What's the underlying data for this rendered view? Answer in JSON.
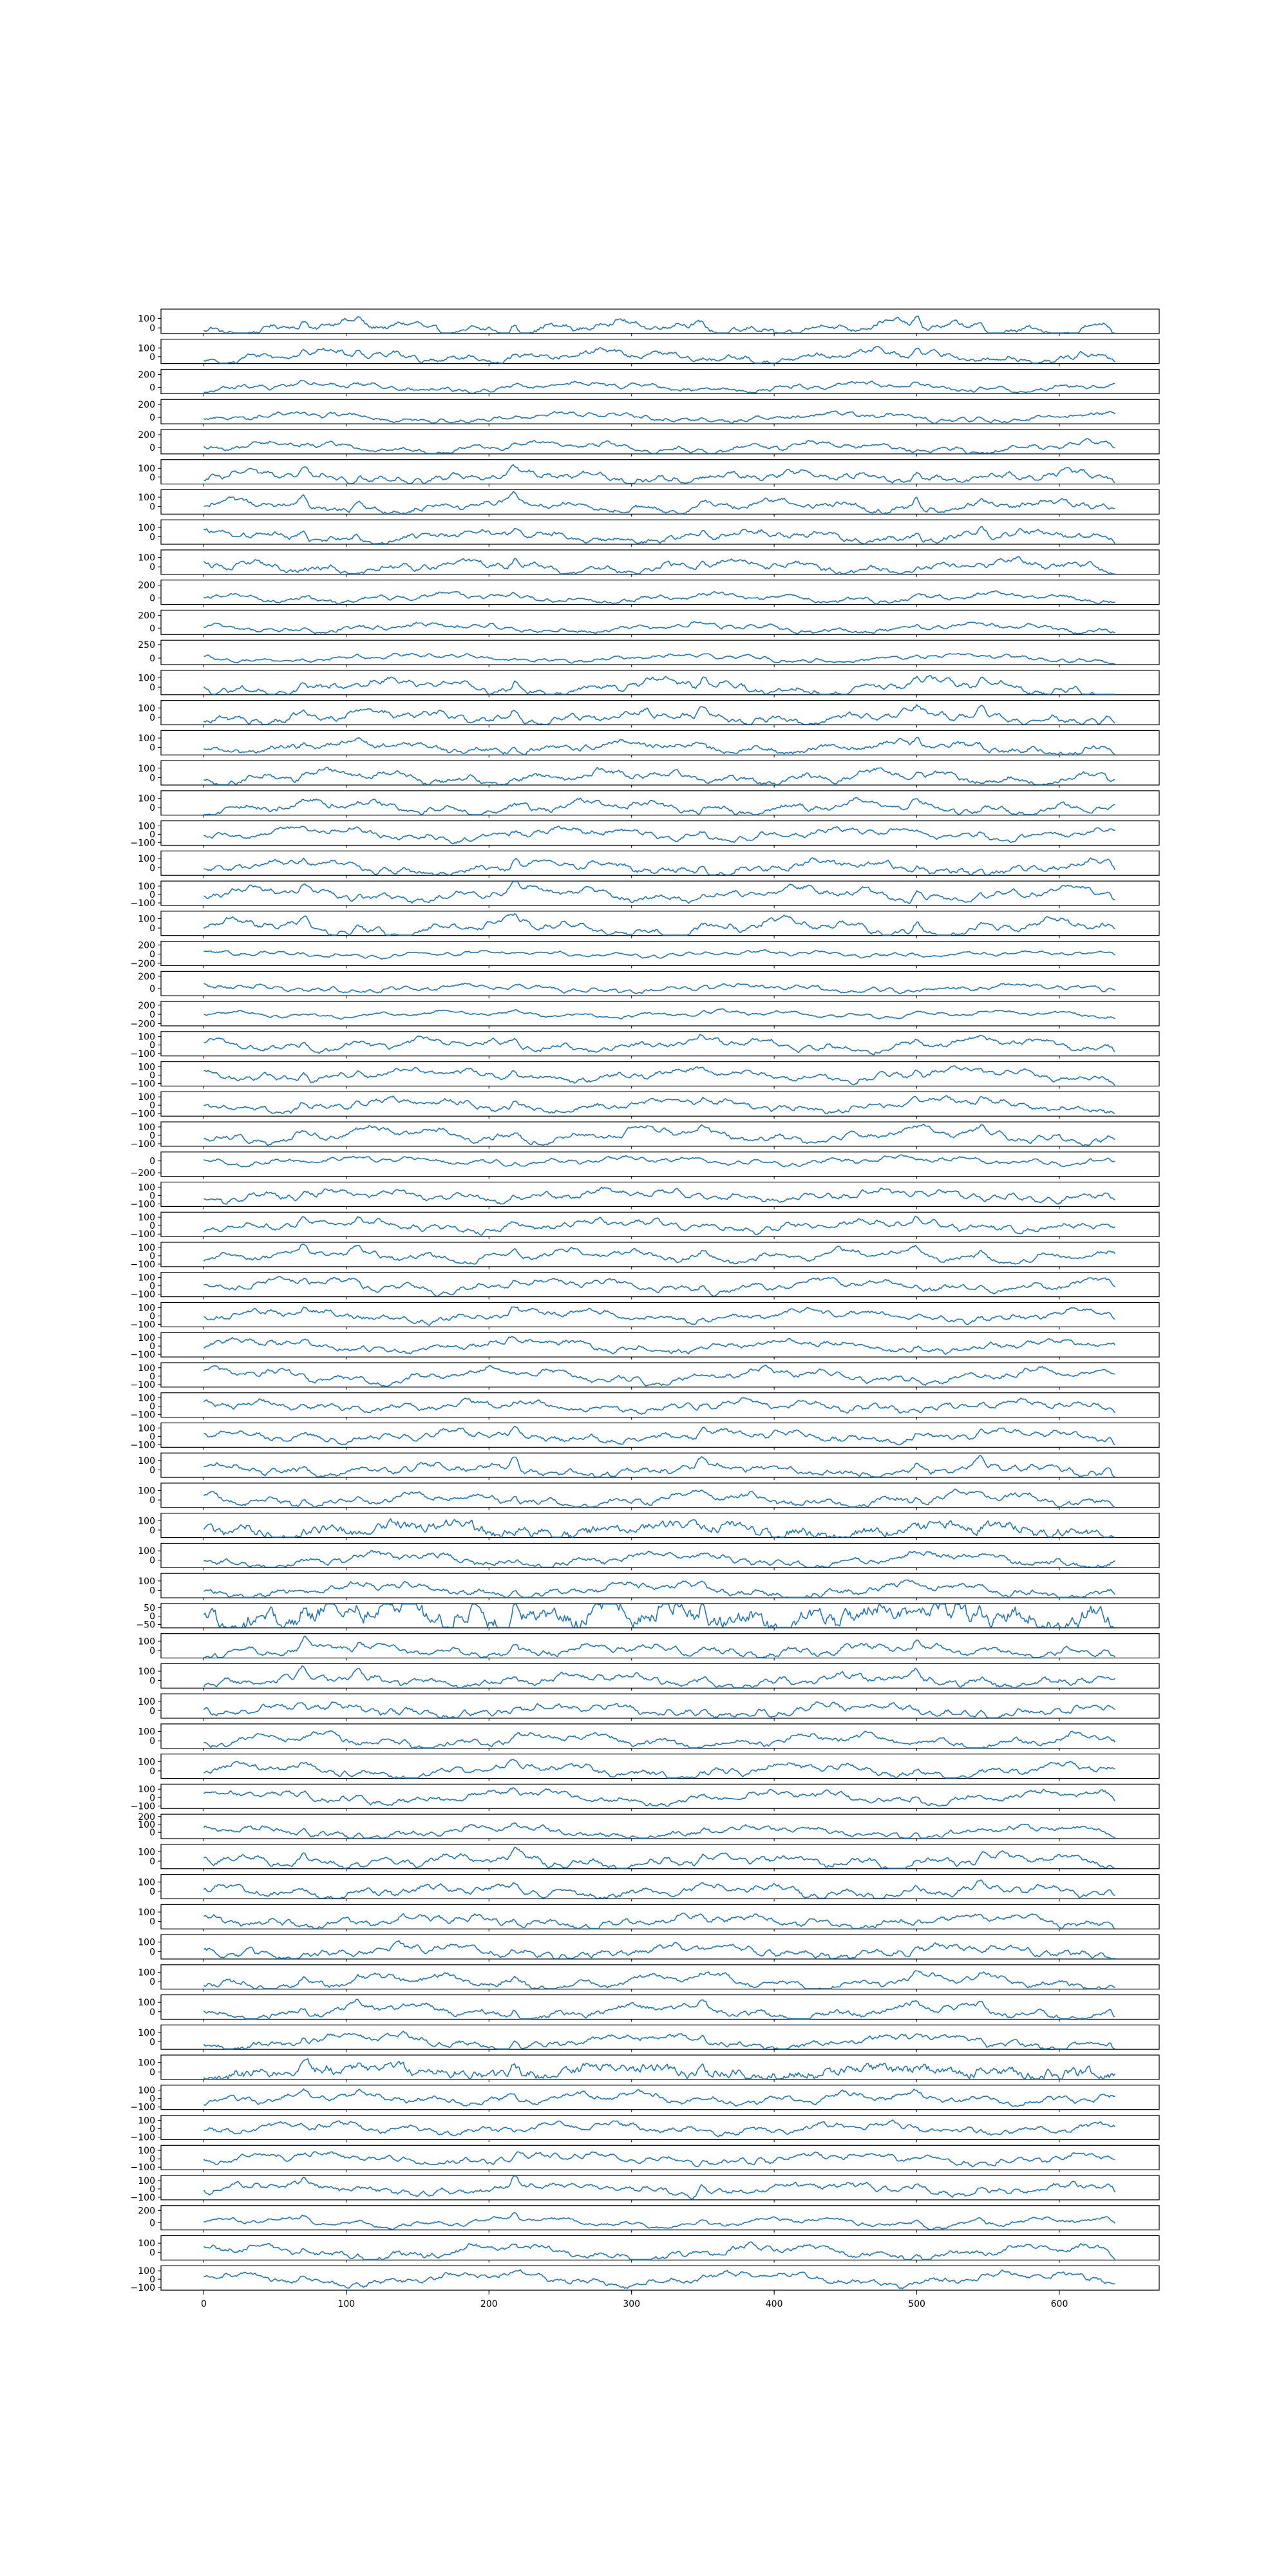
{
  "chart_data": {
    "type": "line",
    "layout": "stacked-subplots",
    "shared_x": true,
    "grid": false,
    "legend": "none",
    "title": "",
    "xlabel": "",
    "ylabel": "",
    "n_points": 640,
    "xlim": [
      -30,
      670
    ],
    "xticks": [
      0,
      100,
      200,
      300,
      400,
      500,
      600
    ],
    "xtick_labels": [
      "0",
      "100",
      "200",
      "300",
      "400",
      "500",
      "600"
    ],
    "line_color": "#1f77b4",
    "common_events": [
      {
        "x": 70,
        "amp": 90
      },
      {
        "x": 108,
        "amp": 55
      },
      {
        "x": 218,
        "amp": 95
      },
      {
        "x": 350,
        "amp": 70
      },
      {
        "x": 500,
        "amp": 80
      },
      {
        "x": 545,
        "amp": 60
      },
      {
        "x": 640,
        "amp": -80
      }
    ],
    "subplots": [
      {
        "yticks": [
          100,
          0
        ],
        "ylim": [
          -60,
          200
        ]
      },
      {
        "yticks": [
          100,
          0
        ],
        "ylim": [
          -80,
          200
        ]
      },
      {
        "yticks": [
          200,
          0
        ],
        "ylim": [
          -100,
          280
        ]
      },
      {
        "yticks": [
          200,
          0
        ],
        "ylim": [
          -100,
          280
        ]
      },
      {
        "yticks": [
          200,
          0
        ],
        "ylim": [
          -100,
          280
        ]
      },
      {
        "yticks": [
          100,
          0
        ],
        "ylim": [
          -80,
          200
        ]
      },
      {
        "yticks": [
          100,
          0
        ],
        "ylim": [
          -80,
          180
        ]
      },
      {
        "yticks": [
          100,
          0
        ],
        "ylim": [
          -80,
          180
        ]
      },
      {
        "yticks": [
          100,
          0
        ],
        "ylim": [
          -80,
          180
        ]
      },
      {
        "yticks": [
          200,
          0
        ],
        "ylim": [
          -100,
          280
        ]
      },
      {
        "yticks": [
          200,
          0
        ],
        "ylim": [
          -100,
          280
        ]
      },
      {
        "yticks": [
          250,
          0
        ],
        "ylim": [
          -120,
          330
        ]
      },
      {
        "yticks": [
          100,
          0
        ],
        "ylim": [
          -80,
          180
        ]
      },
      {
        "yticks": [
          100,
          0
        ],
        "ylim": [
          -80,
          180
        ]
      },
      {
        "yticks": [
          100,
          0
        ],
        "ylim": [
          -80,
          180
        ]
      },
      {
        "yticks": [
          100,
          0
        ],
        "ylim": [
          -80,
          180
        ]
      },
      {
        "yticks": [
          100,
          0
        ],
        "ylim": [
          -80,
          180
        ]
      },
      {
        "yticks": [
          100,
          0,
          -100
        ],
        "ylim": [
          -130,
          160
        ]
      },
      {
        "yticks": [
          100,
          0
        ],
        "ylim": [
          -80,
          180
        ]
      },
      {
        "yticks": [
          100,
          0,
          -100
        ],
        "ylim": [
          -130,
          160
        ]
      },
      {
        "yticks": [
          100,
          0
        ],
        "ylim": [
          -80,
          180
        ]
      },
      {
        "yticks": [
          200,
          0,
          -200
        ],
        "ylim": [
          -250,
          280
        ]
      },
      {
        "yticks": [
          200,
          0
        ],
        "ylim": [
          -120,
          280
        ]
      },
      {
        "yticks": [
          200,
          0,
          -200
        ],
        "ylim": [
          -250,
          280
        ]
      },
      {
        "yticks": [
          100,
          0,
          -100
        ],
        "ylim": [
          -130,
          160
        ]
      },
      {
        "yticks": [
          100,
          0,
          -100
        ],
        "ylim": [
          -130,
          160
        ]
      },
      {
        "yticks": [
          100,
          0,
          -100
        ],
        "ylim": [
          -130,
          160
        ]
      },
      {
        "yticks": [
          100,
          0,
          -100
        ],
        "ylim": [
          -130,
          160
        ]
      },
      {
        "yticks": [
          0,
          -200
        ],
        "ylim": [
          -260,
          150
        ]
      },
      {
        "yticks": [
          100,
          0,
          -100
        ],
        "ylim": [
          -130,
          160
        ]
      },
      {
        "yticks": [
          100,
          0,
          -100
        ],
        "ylim": [
          -130,
          160
        ]
      },
      {
        "yticks": [
          100,
          0,
          -100
        ],
        "ylim": [
          -130,
          160
        ]
      },
      {
        "yticks": [
          100,
          0,
          -100
        ],
        "ylim": [
          -130,
          160
        ]
      },
      {
        "yticks": [
          100,
          0,
          -100
        ],
        "ylim": [
          -130,
          160
        ]
      },
      {
        "yticks": [
          100,
          0,
          -100
        ],
        "ylim": [
          -130,
          160
        ]
      },
      {
        "yticks": [
          100,
          0,
          -100
        ],
        "ylim": [
          -130,
          160
        ]
      },
      {
        "yticks": [
          100,
          0,
          -100
        ],
        "ylim": [
          -130,
          160
        ]
      },
      {
        "yticks": [
          100,
          0,
          -100
        ],
        "ylim": [
          -130,
          160
        ]
      },
      {
        "yticks": [
          100,
          0
        ],
        "ylim": [
          -80,
          180
        ]
      },
      {
        "yticks": [
          100,
          0
        ],
        "ylim": [
          -80,
          180
        ]
      },
      {
        "yticks": [
          100,
          0
        ],
        "ylim": [
          -80,
          180
        ]
      },
      {
        "yticks": [
          100,
          0
        ],
        "ylim": [
          -80,
          180
        ]
      },
      {
        "yticks": [
          100,
          0
        ],
        "ylim": [
          -80,
          180
        ]
      },
      {
        "yticks": [
          50,
          0,
          -50
        ],
        "ylim": [
          -70,
          75
        ]
      },
      {
        "yticks": [
          100,
          0
        ],
        "ylim": [
          -80,
          180
        ]
      },
      {
        "yticks": [
          100,
          0
        ],
        "ylim": [
          -80,
          180
        ]
      },
      {
        "yticks": [
          100,
          0
        ],
        "ylim": [
          -80,
          180
        ]
      },
      {
        "yticks": [
          100,
          0
        ],
        "ylim": [
          -80,
          180
        ]
      },
      {
        "yticks": [
          100,
          0
        ],
        "ylim": [
          -80,
          180
        ]
      },
      {
        "yticks": [
          100,
          0,
          -100
        ],
        "ylim": [
          -130,
          160
        ]
      },
      {
        "yticks": [
          200,
          100,
          0
        ],
        "ylim": [
          -80,
          230
        ]
      },
      {
        "yticks": [
          100,
          0
        ],
        "ylim": [
          -80,
          180
        ]
      },
      {
        "yticks": [
          100,
          0
        ],
        "ylim": [
          -80,
          180
        ]
      },
      {
        "yticks": [
          100,
          0
        ],
        "ylim": [
          -80,
          180
        ]
      },
      {
        "yticks": [
          100,
          0
        ],
        "ylim": [
          -80,
          180
        ]
      },
      {
        "yticks": [
          100,
          0
        ],
        "ylim": [
          -80,
          180
        ]
      },
      {
        "yticks": [
          100,
          0
        ],
        "ylim": [
          -80,
          180
        ]
      },
      {
        "yticks": [
          100,
          0
        ],
        "ylim": [
          -80,
          180
        ]
      },
      {
        "yticks": [
          100,
          0
        ],
        "ylim": [
          -80,
          180
        ]
      },
      {
        "yticks": [
          100,
          0,
          -100
        ],
        "ylim": [
          -130,
          160
        ]
      },
      {
        "yticks": [
          100,
          0,
          -100
        ],
        "ylim": [
          -130,
          160
        ]
      },
      {
        "yticks": [
          100,
          0,
          -100
        ],
        "ylim": [
          -130,
          160
        ]
      },
      {
        "yticks": [
          100,
          0,
          -100
        ],
        "ylim": [
          -130,
          160
        ]
      },
      {
        "yticks": [
          200,
          0
        ],
        "ylim": [
          -120,
          280
        ]
      },
      {
        "yticks": [
          100,
          0
        ],
        "ylim": [
          -80,
          180
        ]
      },
      {
        "yticks": [
          100,
          0,
          -100
        ],
        "ylim": [
          -130,
          160
        ]
      }
    ]
  }
}
